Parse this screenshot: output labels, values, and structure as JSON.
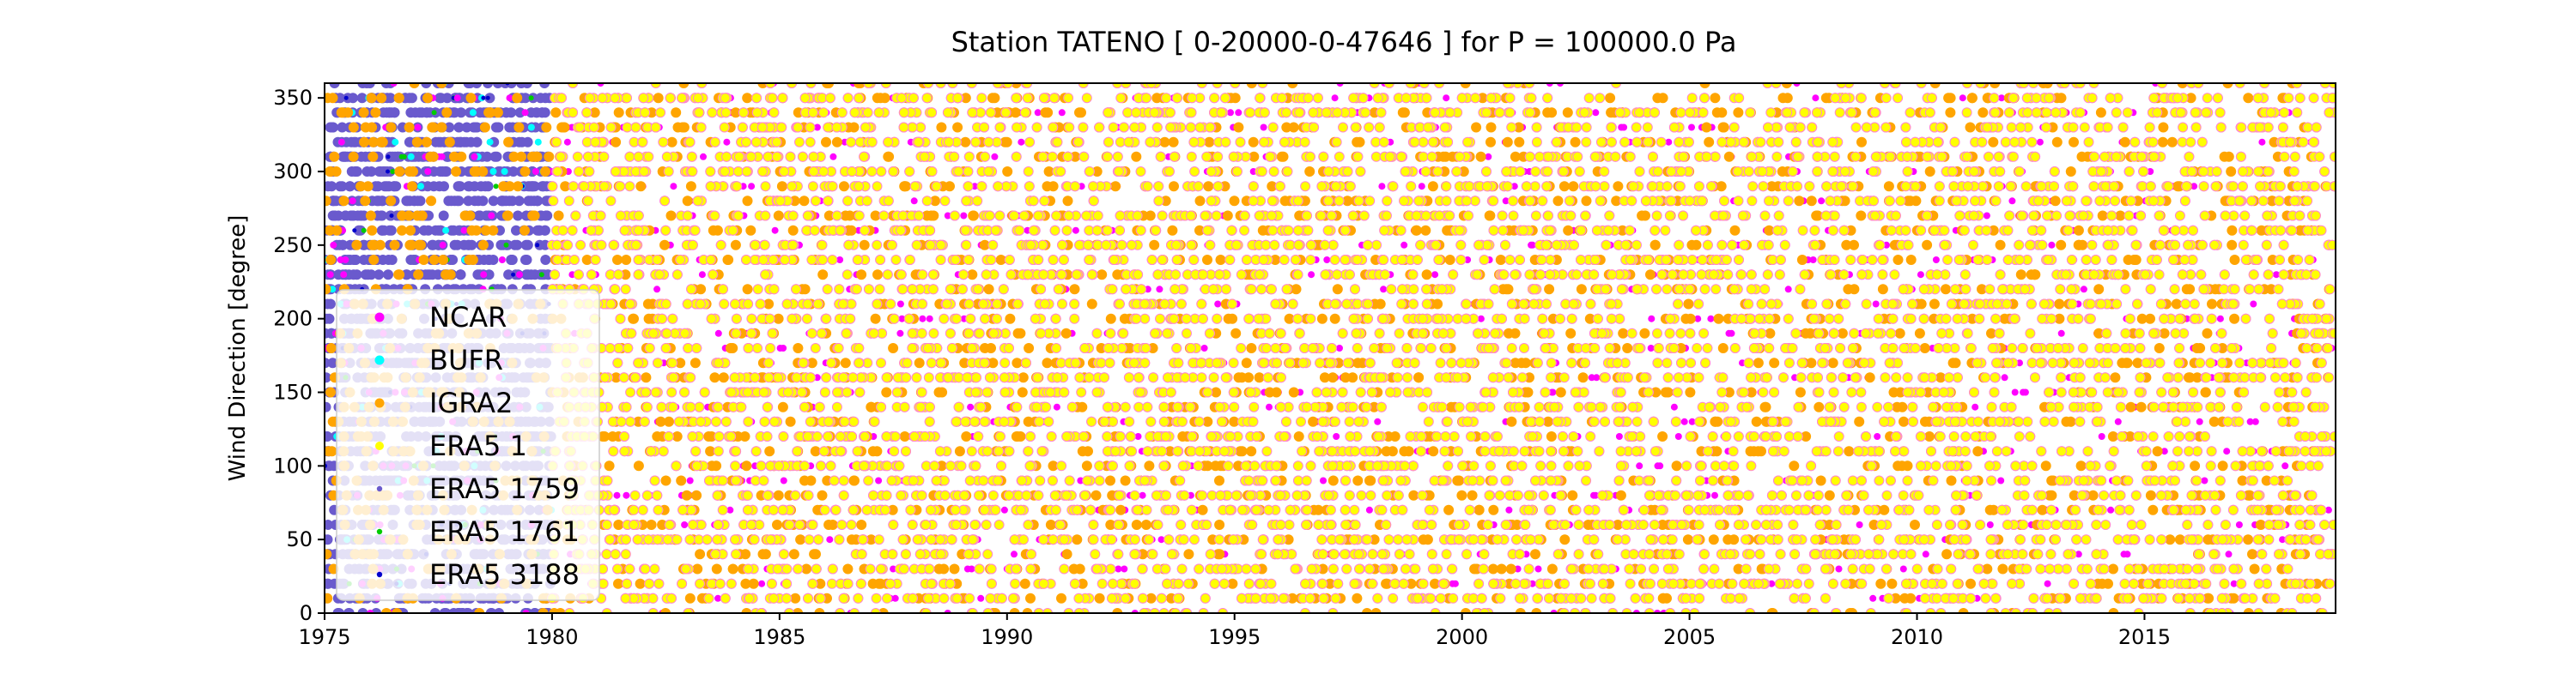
{
  "chart_data": {
    "type": "scatter",
    "title": "Station  TATENO [ 0-20000-0-47646 ]  for P = 100000.0 Pa",
    "xlabel": "",
    "ylabel": "Wind Direction [degree]",
    "xlim": [
      1975,
      2019.2
    ],
    "ylim": [
      0,
      360
    ],
    "x_ticks": [
      1975,
      1980,
      1985,
      1990,
      1995,
      2000,
      2005,
      2010,
      2015
    ],
    "y_ticks": [
      0,
      50,
      100,
      150,
      200,
      250,
      300,
      350
    ],
    "grid": false,
    "legend_position": "left",
    "series": [
      {
        "name": "NCAR",
        "color": "#ff00ff",
        "x_range": [
          1975.0,
          2019.2
        ],
        "y_range": [
          0,
          360
        ]
      },
      {
        "name": "BUFR",
        "color": "#00ffff",
        "x_range": [
          1975.0,
          1980.0
        ],
        "y_range": [
          0,
          360
        ]
      },
      {
        "name": "IGRA2",
        "color": "#ffa500",
        "x_range": [
          1975.0,
          2019.2
        ],
        "y_range": [
          0,
          360
        ]
      },
      {
        "name": "ERA5 1",
        "color": "#ffff00",
        "x_range": [
          1980.0,
          2019.2
        ],
        "y_range": [
          0,
          360
        ]
      },
      {
        "name": "ERA5 1759",
        "color": "#6a5acd",
        "x_range": [
          1975.0,
          1980.0
        ],
        "y_range": [
          0,
          360
        ]
      },
      {
        "name": "ERA5 1761",
        "color": "#00cc00",
        "x_range": [
          1975.0,
          1980.0
        ],
        "y_range": [
          0,
          360
        ]
      },
      {
        "name": "ERA5 3188",
        "color": "#0000cc",
        "x_range": [
          1975.0,
          1980.0
        ],
        "y_range": [
          0,
          360
        ]
      }
    ]
  }
}
